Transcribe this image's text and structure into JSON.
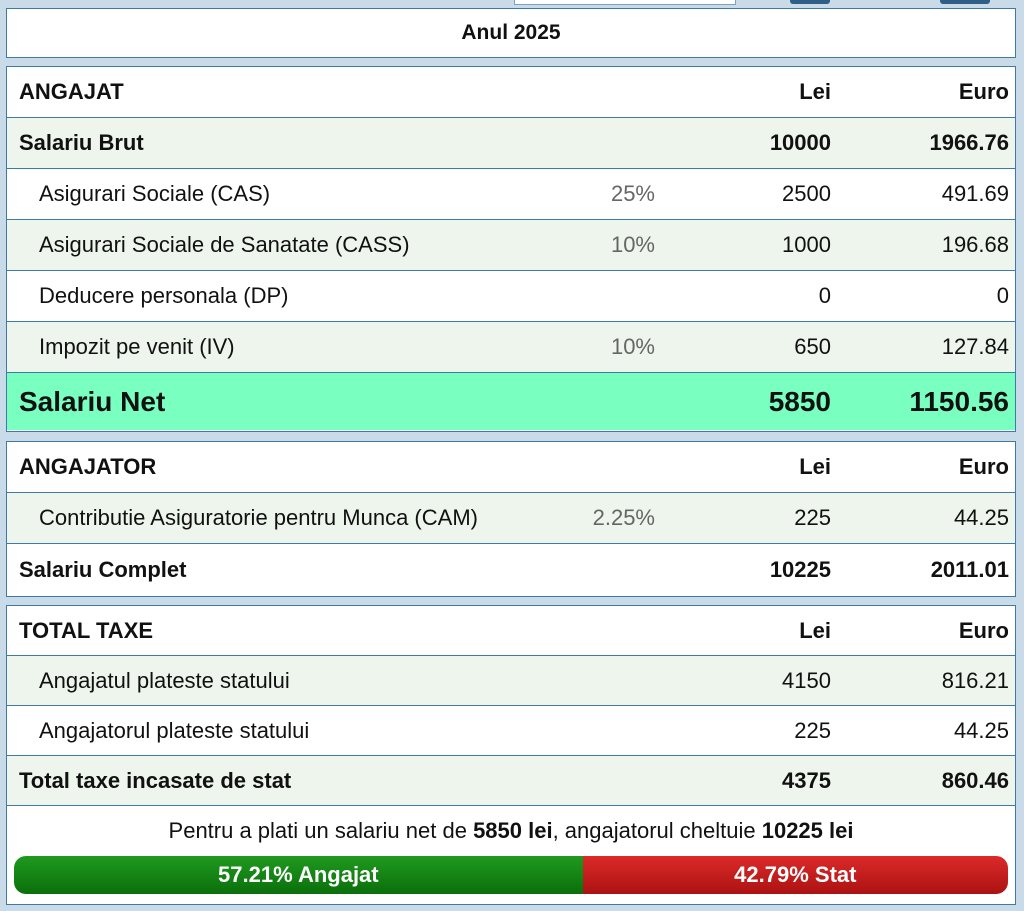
{
  "year_title": "Anul 2025",
  "angajat": {
    "header": {
      "label": "ANGAJAT",
      "lei": "Lei",
      "euro": "Euro"
    },
    "rows": [
      {
        "label": "Salariu Brut",
        "pct": "",
        "lei": "10000",
        "euro": "1966.76"
      },
      {
        "label": "Asigurari Sociale (CAS)",
        "pct": "25%",
        "lei": "2500",
        "euro": "491.69"
      },
      {
        "label": "Asigurari Sociale de Sanatate (CASS)",
        "pct": "10%",
        "lei": "1000",
        "euro": "196.68"
      },
      {
        "label": "Deducere personala (DP)",
        "pct": "",
        "lei": "0",
        "euro": "0"
      },
      {
        "label": "Impozit pe venit (IV)",
        "pct": "10%",
        "lei": "650",
        "euro": "127.84"
      }
    ],
    "net": {
      "label": "Salariu Net",
      "lei": "5850",
      "euro": "1150.56"
    }
  },
  "angajator": {
    "header": {
      "label": "ANGAJATOR",
      "lei": "Lei",
      "euro": "Euro"
    },
    "rows": [
      {
        "label": "Contributie Asiguratorie pentru Munca (CAM)",
        "pct": "2.25%",
        "lei": "225",
        "euro": "44.25"
      }
    ],
    "total": {
      "label": "Salariu Complet",
      "lei": "10225",
      "euro": "2011.01"
    }
  },
  "total_taxe": {
    "header": {
      "label": "TOTAL TAXE",
      "lei": "Lei",
      "euro": "Euro"
    },
    "rows": [
      {
        "label": "Angajatul plateste statului",
        "lei": "4150",
        "euro": "816.21"
      },
      {
        "label": "Angajatorul plateste statului",
        "lei": "225",
        "euro": "44.25"
      }
    ],
    "total": {
      "label": "Total taxe incasate de stat",
      "lei": "4375",
      "euro": "860.46"
    }
  },
  "summary": {
    "part1": "Pentru a plati un salariu net de ",
    "net_amount": "5850 lei",
    "part2": ", angajatorul cheltuie ",
    "cost_amount": "10225 lei"
  },
  "split": {
    "angajat_pct": 57.21,
    "stat_pct": 42.79,
    "angajat_label": "57.21% Angajat",
    "stat_label": "42.79% Stat",
    "angajat_color": "#0b7f0b",
    "stat_color": "#c41c1c"
  }
}
